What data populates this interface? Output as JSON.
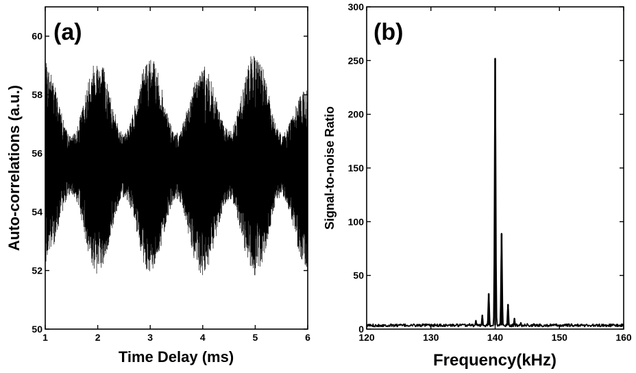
{
  "chart_data": [
    {
      "type": "line",
      "panel_label": "(a)",
      "xlabel": "Time Delay (ms)",
      "ylabel": "Auto-correlations (a.u.)",
      "xlim": [
        1,
        6
      ],
      "ylim": [
        50,
        61
      ],
      "xticks": [
        1,
        2,
        3,
        4,
        5,
        6
      ],
      "yticks": [
        50,
        52,
        54,
        56,
        58,
        60
      ],
      "baseline": 55.5,
      "modulation_period_ms": 1.0,
      "envelope": [
        {
          "x": 1.0,
          "upper": 59.1,
          "lower": 52.3
        },
        {
          "x": 1.5,
          "upper": 56.6,
          "lower": 54.6
        },
        {
          "x": 2.0,
          "upper": 59.3,
          "lower": 51.8
        },
        {
          "x": 2.5,
          "upper": 56.7,
          "lower": 54.5
        },
        {
          "x": 3.0,
          "upper": 59.3,
          "lower": 51.9
        },
        {
          "x": 3.5,
          "upper": 56.7,
          "lower": 54.4
        },
        {
          "x": 4.0,
          "upper": 59.0,
          "lower": 51.7
        },
        {
          "x": 4.5,
          "upper": 56.8,
          "lower": 54.4
        },
        {
          "x": 5.0,
          "upper": 59.5,
          "lower": 51.8
        },
        {
          "x": 5.5,
          "upper": 56.7,
          "lower": 54.5
        },
        {
          "x": 6.0,
          "upper": 58.3,
          "lower": 52.0
        }
      ],
      "grid": false
    },
    {
      "type": "line",
      "panel_label": "(b)",
      "xlabel": "Frequency(kHz)",
      "ylabel": "Signal-to-noise Ratio",
      "xlim": [
        120,
        160
      ],
      "ylim": [
        0,
        300
      ],
      "xticks": [
        120,
        130,
        140,
        150,
        160
      ],
      "yticks": [
        0,
        50,
        100,
        150,
        200,
        250,
        300
      ],
      "noise_floor": 3.5,
      "peaks": [
        {
          "x": 136.0,
          "y": 5
        },
        {
          "x": 137.0,
          "y": 8
        },
        {
          "x": 138.0,
          "y": 13
        },
        {
          "x": 139.0,
          "y": 33
        },
        {
          "x": 140.0,
          "y": 252
        },
        {
          "x": 141.0,
          "y": 89
        },
        {
          "x": 142.0,
          "y": 23
        },
        {
          "x": 143.0,
          "y": 10
        },
        {
          "x": 144.0,
          "y": 6
        },
        {
          "x": 145.0,
          "y": 5
        },
        {
          "x": 146.0,
          "y": 5
        }
      ],
      "grid": false
    }
  ]
}
